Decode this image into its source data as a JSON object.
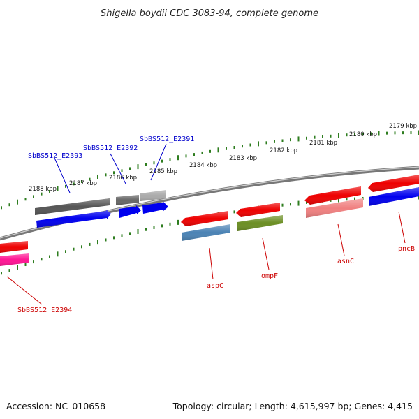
{
  "title": "Shigella boydii CDC 3083-94, complete genome",
  "accession": "Accession: NC_010658",
  "summary": "Topology: circular; Length: 4,615,997 bp; Genes: 4,415",
  "colors": {
    "backbone": "#8a8a8a",
    "ticks": "#2e7d1f",
    "label_top": "#0000cc",
    "label_bottom": "#cc0000"
  },
  "kbp_labels": [
    "2188 kbp",
    "2187 kbp",
    "2186 kbp",
    "2185 kbp",
    "2184 kbp",
    "2183 kbp",
    "2182 kbp",
    "2181 kbp",
    "2180 kbp",
    "2179 kbp"
  ],
  "gene_labels_top": [
    "SbBS512_E2393",
    "SbBS512_E2392",
    "SbBS512_E2391"
  ],
  "gene_labels_bottom": [
    "SbBS512_E2394",
    "aspC",
    "ompF",
    "asnC",
    "pncB"
  ],
  "features": [
    {
      "name": "SbBS512_E2393 outer",
      "color": "#555555",
      "dir": "left"
    },
    {
      "name": "SbBS512_E2393 inner",
      "color": "#0000ee",
      "dir": "right"
    },
    {
      "name": "SbBS512_E2392 outer",
      "color": "#666666",
      "dir": "left"
    },
    {
      "name": "SbBS512_E2392 inner",
      "color": "#0000ee",
      "dir": "right"
    },
    {
      "name": "SbBS512_E2391 outer",
      "color": "#aaaaaa",
      "dir": "left"
    },
    {
      "name": "SbBS512_E2391 inner",
      "color": "#0000ee",
      "dir": "right"
    },
    {
      "name": "aspC outer",
      "color": "#ee0000",
      "dir": "left"
    },
    {
      "name": "aspC inner",
      "color": "#4a82b4",
      "dir": "none"
    },
    {
      "name": "ompF outer",
      "color": "#ee0000",
      "dir": "left"
    },
    {
      "name": "ompF inner",
      "color": "#6b8e23",
      "dir": "none"
    },
    {
      "name": "asnC outer",
      "color": "#ee0000",
      "dir": "left"
    },
    {
      "name": "asnC inner",
      "color": "#f08080",
      "dir": "none"
    },
    {
      "name": "pncB outer",
      "color": "#ee0000",
      "dir": "left"
    },
    {
      "name": "pncB inner",
      "color": "#0000ee",
      "dir": "none"
    },
    {
      "name": "SbBS512_E2394 outer",
      "color": "#ee0000",
      "dir": "none"
    },
    {
      "name": "SbBS512_E2394 inner",
      "color": "#ff1493",
      "dir": "none"
    }
  ]
}
